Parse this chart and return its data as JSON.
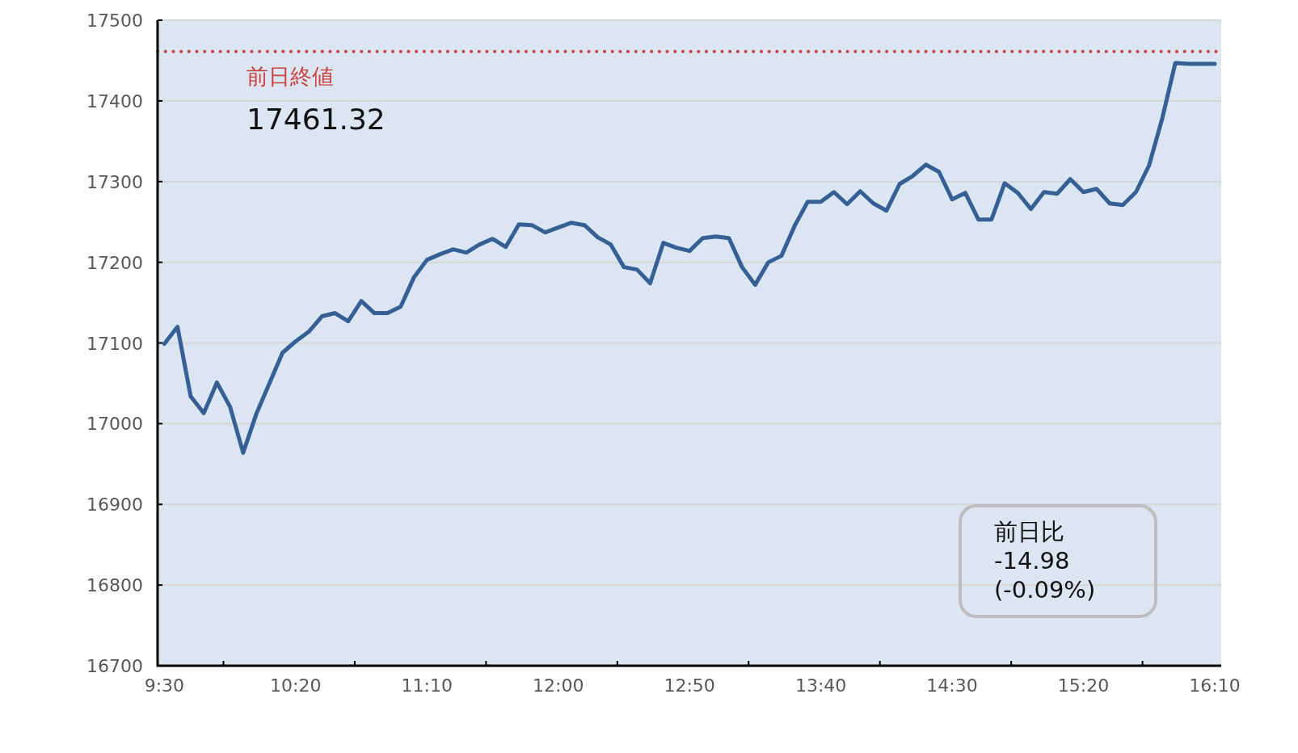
{
  "chart_data": {
    "type": "line",
    "x": [
      9.5,
      9.5833,
      9.6667,
      9.75,
      9.8333,
      9.9167,
      10,
      10.0833,
      10.1667,
      10.25,
      10.3333,
      10.4167,
      10.5,
      10.5833,
      10.6667,
      10.75,
      10.8333,
      10.9167,
      11,
      11.0833,
      11.1667,
      11.25,
      11.3333,
      11.4167,
      11.5,
      11.5833,
      11.6667,
      11.75,
      11.8333,
      11.9167,
      12,
      12.0833,
      12.1667,
      12.25,
      12.3333,
      12.4167,
      12.5,
      12.5833,
      12.6667,
      12.75,
      12.8333,
      12.9167,
      13,
      13.0833,
      13.1667,
      13.25,
      13.3333,
      13.4167,
      13.5,
      13.5833,
      13.6667,
      13.75,
      13.8333,
      13.9167,
      14,
      14.0833,
      14.1667,
      14.25,
      14.3333,
      14.4167,
      14.5,
      14.5833,
      14.6667,
      14.75,
      14.8333,
      14.9167,
      15,
      15.0833,
      15.1667,
      15.25,
      15.3333,
      15.4167,
      15.5,
      15.5833,
      15.6667,
      15.75,
      15.8333,
      15.9167,
      16,
      16.0833,
      16.1667
    ],
    "values": [
      17099,
      17120,
      17034,
      17013,
      17051,
      17021,
      16964,
      17012,
      17050,
      17088,
      17102,
      17114,
      17133,
      17137,
      17127,
      17152,
      17137,
      17137,
      17145,
      17181,
      17203,
      17210,
      17216,
      17212,
      17222,
      17229,
      17219,
      17247,
      17246,
      17237,
      17243,
      17249,
      17246,
      17231,
      17222,
      17194,
      17191,
      17174,
      17224,
      17218,
      17214,
      17230,
      17232,
      17230,
      17194,
      17172,
      17200,
      17208,
      17245,
      17275,
      17275,
      17287,
      17272,
      17288,
      17273,
      17264,
      17297,
      17307,
      17321,
      17312,
      17278,
      17286,
      17253,
      17253,
      17298,
      17286,
      17266,
      17287,
      17285,
      17303,
      17287,
      17291,
      17273,
      17271,
      17287,
      17320,
      17378,
      17447,
      17446,
      17446,
      17446
    ],
    "color": "#356096",
    "xlim": [
      9.457,
      16.208
    ],
    "xticks": [
      {
        "value": 9.5,
        "label": "9:30"
      },
      {
        "value": 10.3333,
        "label": "10:20"
      },
      {
        "value": 11.1667,
        "label": "11:10"
      },
      {
        "value": 12,
        "label": "12:00"
      },
      {
        "value": 12.8333,
        "label": "12:50"
      },
      {
        "value": 13.6667,
        "label": "13:40"
      },
      {
        "value": 14.5,
        "label": "14:30"
      },
      {
        "value": 15.3333,
        "label": "15:20"
      },
      {
        "value": 16.1667,
        "label": "16:10"
      },
      {
        "value": 9.875,
        "label": null
      },
      {
        "value": 10.7083,
        "label": null
      },
      {
        "value": 11.5417,
        "label": null
      },
      {
        "value": 12.375,
        "label": null
      },
      {
        "value": 13.2083,
        "label": null
      },
      {
        "value": 14.0417,
        "label": null
      },
      {
        "value": 14.875,
        "label": null
      },
      {
        "value": 15.7083,
        "label": null
      }
    ],
    "ylim": [
      16700,
      17500
    ],
    "yticks": [
      16700,
      16800,
      16900,
      17000,
      17100,
      17200,
      17300,
      17400,
      17500
    ],
    "grid": "y",
    "ref_lines": [
      {
        "axis": "y",
        "value": 17461.32,
        "label": "前日終値",
        "color": "#c9403c",
        "line_style": "dotted"
      }
    ],
    "annotations": [
      "17461.32",
      "前日比\n-14.98\n(-0.09%)"
    ]
  }
}
